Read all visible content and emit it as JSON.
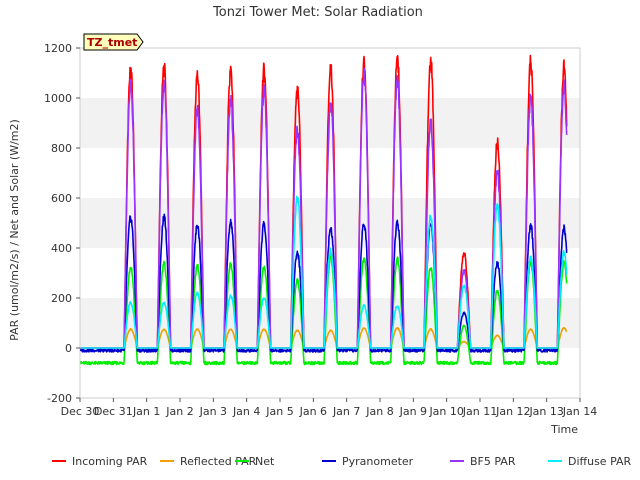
{
  "chart_data": {
    "type": "line",
    "title": "Tonzi Tower Met: Solar Radiation",
    "xlabel": "Time",
    "ylabel": "PAR (umol/m2/s) / Net and Solar (W/m2)",
    "ylim": [
      -200,
      1200
    ],
    "yticks": [
      -200,
      0,
      200,
      400,
      600,
      800,
      1000,
      1200
    ],
    "xlim_days": [
      0,
      15
    ],
    "xtick_labels": [
      "Dec 30",
      "Dec 31",
      "Jan 1",
      "Jan 2",
      "Jan 3",
      "Jan 4",
      "Jan 5",
      "Jan 6",
      "Jan 7",
      "Jan 8",
      "Jan 9",
      "Jan 10",
      "Jan 11",
      "Jan 12",
      "Jan 13",
      "Jan 14"
    ],
    "grid": "horizontal bands",
    "legend_position": "bottom",
    "annotation": "TZ_tmet",
    "day_peaks": [
      1,
      2,
      3,
      4,
      5,
      6,
      7,
      8,
      9,
      10,
      11,
      12,
      13,
      14
    ],
    "series": [
      {
        "name": "Incoming PAR",
        "color": "#ff0000",
        "night": 0,
        "peaks": [
          1110,
          1120,
          1090,
          1110,
          1110,
          1030,
          1120,
          1145,
          1155,
          1145,
          380,
          820,
          1140,
          1120
        ]
      },
      {
        "name": "Reflected PAR",
        "color": "#f0a000",
        "night": 0,
        "peaks": [
          75,
          75,
          75,
          75,
          75,
          70,
          70,
          80,
          80,
          75,
          25,
          50,
          75,
          80
        ]
      },
      {
        "name": "Net",
        "color": "#00ee00",
        "night": -60,
        "peaks": [
          320,
          340,
          330,
          335,
          325,
          270,
          360,
          355,
          355,
          320,
          90,
          230,
          340,
          340
        ]
      },
      {
        "name": "Pyranometer",
        "color": "#0000cc",
        "night": -10,
        "peaks": [
          520,
          525,
          490,
          505,
          495,
          380,
          480,
          500,
          505,
          500,
          140,
          340,
          490,
          480
        ]
      },
      {
        "name": "BF5 PAR",
        "color": "#9933ff",
        "night": 0,
        "peaks": [
          1050,
          1050,
          960,
          990,
          1030,
          870,
          980,
          1090,
          1070,
          900,
          310,
          700,
          1000,
          1050
        ]
      },
      {
        "name": "Diffuse PAR",
        "color": "#00eeff",
        "night": 0,
        "peaks": [
          180,
          180,
          220,
          210,
          200,
          600,
          390,
          170,
          170,
          530,
          250,
          570,
          360,
          380
        ]
      }
    ]
  }
}
